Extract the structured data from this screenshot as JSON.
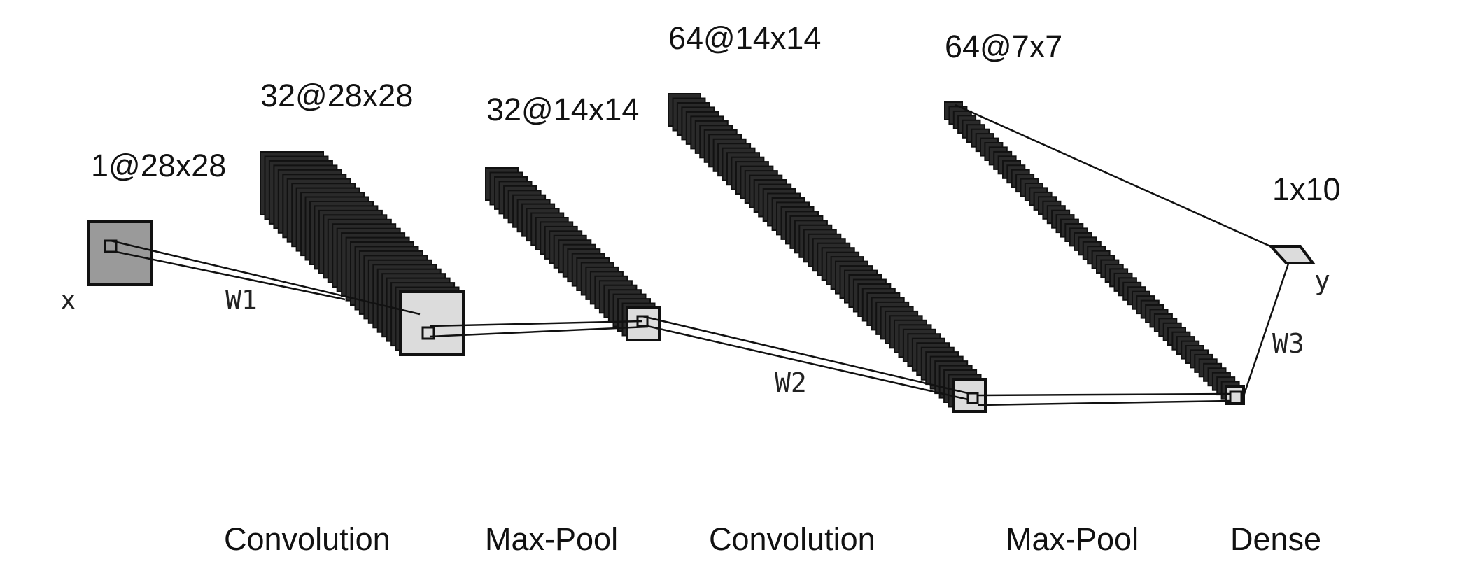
{
  "layers": [
    {
      "id": "input",
      "label": "1@28x28",
      "maps": 1
    },
    {
      "id": "conv1",
      "label": "32@28x28",
      "maps": 32
    },
    {
      "id": "pool1",
      "label": "32@14x14",
      "maps": 32
    },
    {
      "id": "conv2",
      "label": "64@14x14",
      "maps": 64
    },
    {
      "id": "pool2",
      "label": "64@7x7",
      "maps": 64
    },
    {
      "id": "dense",
      "label": "1x10",
      "maps": 1
    }
  ],
  "operations": [
    {
      "id": "op-conv1",
      "label": "Convolution"
    },
    {
      "id": "op-pool1",
      "label": "Max-Pool"
    },
    {
      "id": "op-conv2",
      "label": "Convolution"
    },
    {
      "id": "op-pool2",
      "label": "Max-Pool"
    },
    {
      "id": "op-dense",
      "label": "Dense"
    }
  ],
  "symbols": {
    "x": "x",
    "y": "y",
    "w1": "W1",
    "w2": "W2",
    "w3": "W3"
  },
  "colors": {
    "input_fill": "#9a9a9a",
    "map_fill": "#2a2a2a",
    "front_fill": "#dcdcdc",
    "stroke": "#111111"
  }
}
